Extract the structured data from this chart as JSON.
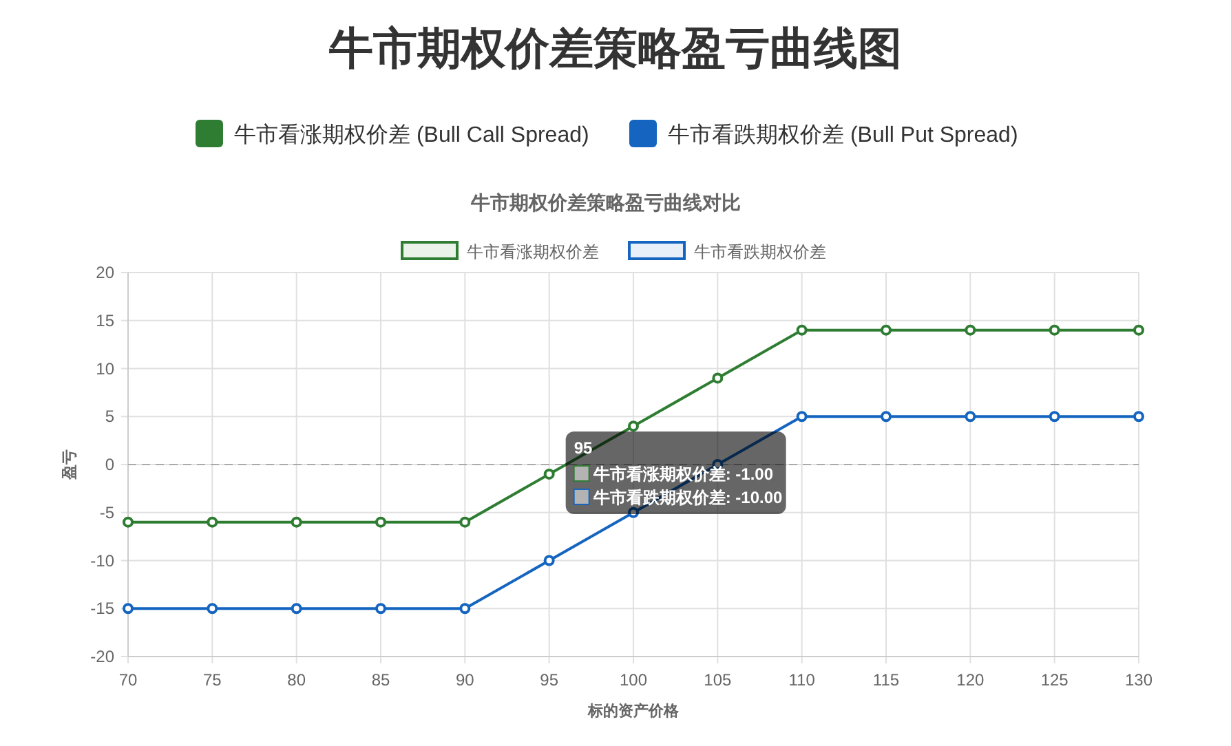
{
  "chart_data": [
    {
      "type": "other",
      "title": "牛市期权价差策略盈亏曲线图",
      "categories": [
        "牛市看涨期权价差 (Bull Call Spread)",
        "牛市看跌期权价差 (Bull Put Spread)"
      ],
      "colors": [
        "#2e7d32",
        "#1565c0"
      ]
    },
    {
      "type": "line",
      "title": "牛市期权价差策略盈亏曲线对比",
      "xlabel": "标的资产价格",
      "ylabel": "盈亏",
      "x": [
        70,
        75,
        80,
        85,
        90,
        95,
        100,
        105,
        110,
        115,
        120,
        125,
        130
      ],
      "series": [
        {
          "name": "牛市看涨期权价差",
          "color": "#2e7d32",
          "values": [
            -6,
            -6,
            -6,
            -6,
            -6,
            -1,
            4,
            9,
            14,
            14,
            14,
            14,
            14
          ]
        },
        {
          "name": "牛市看跌期权价差",
          "color": "#1565c0",
          "values": [
            -15,
            -15,
            -15,
            -15,
            -15,
            -10,
            -5,
            0,
            5,
            5,
            5,
            5,
            5
          ]
        }
      ],
      "xlim": [
        70,
        130
      ],
      "xticks": [
        70,
        75,
        80,
        85,
        90,
        95,
        100,
        105,
        110,
        115,
        120,
        125,
        130
      ],
      "ylim": [
        -20,
        20
      ],
      "yticks": [
        -20,
        -15,
        -10,
        -5,
        0,
        5,
        10,
        15,
        20
      ],
      "ref_lines": [
        {
          "axis": "y",
          "value": 0,
          "color": "#aaaaaa",
          "line_style": "dashed"
        }
      ],
      "grid": true,
      "legend": "top",
      "marker": "circle",
      "line_style": "solid",
      "annotations": [
        {
          "text": "95",
          "x": 95,
          "y": -1
        },
        "牛市看涨期权价差: -1.00",
        "牛市看跌期权价差: -10.00"
      ]
    }
  ]
}
